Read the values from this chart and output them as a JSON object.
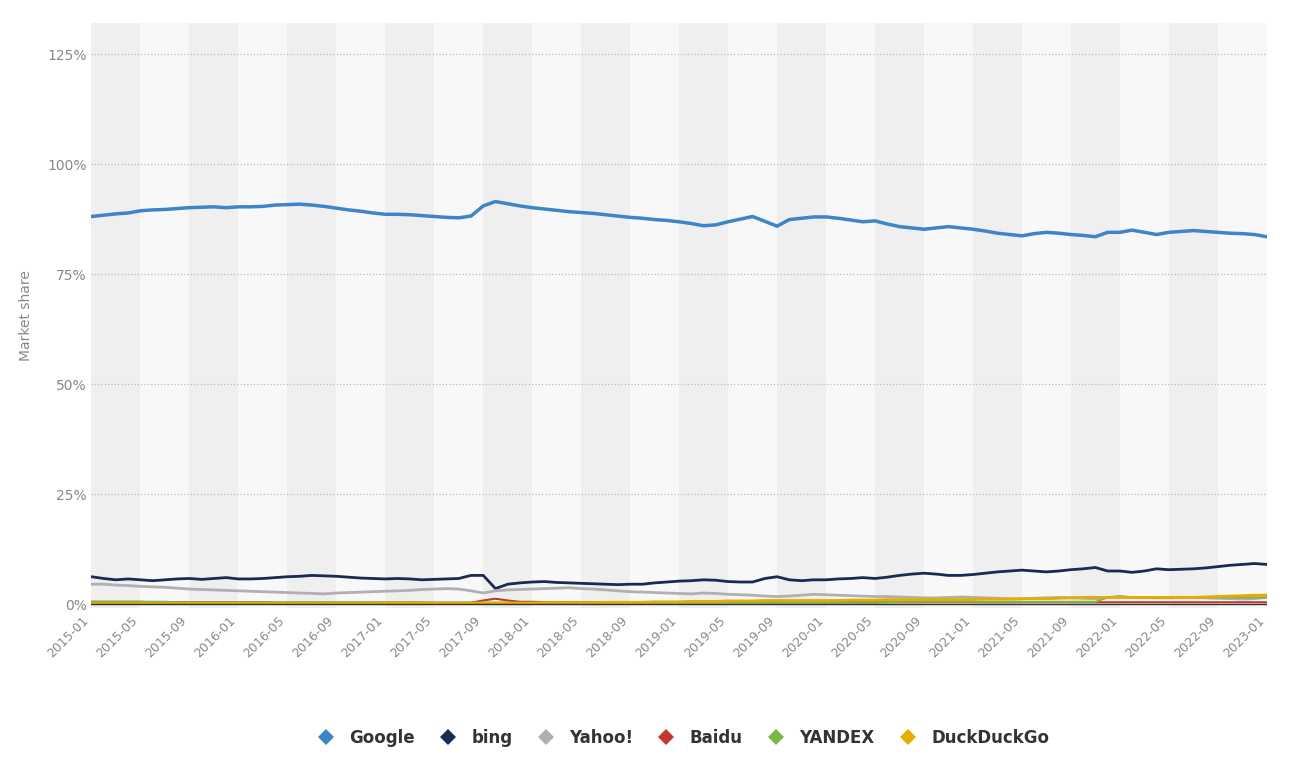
{
  "title": "",
  "ylabel": "Market share",
  "background_color": "#ffffff",
  "band_colors": [
    "#efefef",
    "#f8f8f8"
  ],
  "grid_color": "#cccccc",
  "series": {
    "Google": {
      "color": "#3d85c8",
      "linewidth": 2.5,
      "values": [
        88.1,
        88.4,
        88.7,
        88.9,
        89.4,
        89.6,
        89.7,
        89.9,
        90.1,
        90.2,
        90.3,
        90.1,
        90.3,
        90.3,
        90.4,
        90.7,
        90.8,
        90.9,
        90.7,
        90.4,
        90.0,
        89.6,
        89.3,
        88.9,
        88.6,
        88.6,
        88.5,
        88.3,
        88.1,
        87.9,
        87.8,
        88.2,
        90.5,
        91.5,
        91.0,
        90.5,
        90.1,
        89.8,
        89.5,
        89.2,
        89.0,
        88.8,
        88.5,
        88.2,
        87.9,
        87.7,
        87.4,
        87.2,
        86.9,
        86.5,
        86.0,
        86.2,
        86.9,
        87.5,
        88.1,
        87.0,
        85.9,
        87.4,
        87.7,
        88.0,
        88.0,
        87.7,
        87.3,
        86.9,
        87.1,
        86.4,
        85.8,
        85.5,
        85.2,
        85.5,
        85.8,
        85.5,
        85.2,
        84.8,
        84.3,
        84.0,
        83.7,
        84.2,
        84.5,
        84.3,
        84.0,
        83.8,
        83.5,
        84.5,
        84.5,
        85.0,
        84.5,
        84.0,
        84.5,
        84.7,
        84.9,
        84.7,
        84.5,
        84.3,
        84.2,
        84.0,
        83.5
      ]
    },
    "bing": {
      "color": "#1c2951",
      "linewidth": 2.0,
      "values": [
        6.2,
        5.8,
        5.5,
        5.7,
        5.5,
        5.3,
        5.5,
        5.7,
        5.8,
        5.6,
        5.8,
        6.0,
        5.7,
        5.7,
        5.8,
        6.0,
        6.2,
        6.3,
        6.5,
        6.4,
        6.3,
        6.1,
        5.9,
        5.8,
        5.7,
        5.8,
        5.7,
        5.5,
        5.6,
        5.7,
        5.8,
        6.5,
        6.5,
        3.5,
        4.5,
        4.8,
        5.0,
        5.1,
        4.9,
        4.8,
        4.7,
        4.6,
        4.5,
        4.4,
        4.5,
        4.5,
        4.8,
        5.0,
        5.2,
        5.3,
        5.5,
        5.4,
        5.1,
        5.0,
        5.0,
        5.8,
        6.2,
        5.5,
        5.3,
        5.5,
        5.5,
        5.7,
        5.8,
        6.0,
        5.8,
        6.1,
        6.5,
        6.8,
        7.0,
        6.8,
        6.5,
        6.5,
        6.7,
        7.0,
        7.3,
        7.5,
        7.7,
        7.5,
        7.3,
        7.5,
        7.8,
        8.0,
        8.3,
        7.5,
        7.5,
        7.2,
        7.5,
        8.0,
        7.8,
        7.9,
        8.0,
        8.2,
        8.5,
        8.8,
        9.0,
        9.2,
        9.0
      ]
    },
    "Yahoo!": {
      "color": "#b0b0b0",
      "linewidth": 2.0,
      "values": [
        4.5,
        4.5,
        4.3,
        4.2,
        4.0,
        3.9,
        3.8,
        3.6,
        3.4,
        3.3,
        3.2,
        3.1,
        3.0,
        2.9,
        2.8,
        2.7,
        2.6,
        2.5,
        2.4,
        2.3,
        2.5,
        2.6,
        2.7,
        2.8,
        2.9,
        3.0,
        3.1,
        3.3,
        3.4,
        3.5,
        3.4,
        3.0,
        2.5,
        3.0,
        3.2,
        3.3,
        3.4,
        3.5,
        3.6,
        3.7,
        3.5,
        3.4,
        3.2,
        3.0,
        2.8,
        2.7,
        2.6,
        2.5,
        2.4,
        2.3,
        2.5,
        2.4,
        2.2,
        2.1,
        2.0,
        1.8,
        1.7,
        1.8,
        2.0,
        2.2,
        2.1,
        2.0,
        1.9,
        1.8,
        1.7,
        1.7,
        1.6,
        1.5,
        1.4,
        1.4,
        1.5,
        1.6,
        1.5,
        1.4,
        1.3,
        1.2,
        1.2,
        1.3,
        1.4,
        1.5,
        1.4,
        1.3,
        1.2,
        1.5,
        1.5,
        1.5,
        1.5,
        1.4,
        1.4,
        1.5,
        1.5,
        1.4,
        1.3,
        1.2,
        1.1,
        1.2,
        1.5
      ]
    },
    "Baidu": {
      "color": "#c0392b",
      "linewidth": 1.5,
      "values": [
        0.5,
        0.5,
        0.5,
        0.5,
        0.5,
        0.4,
        0.4,
        0.4,
        0.4,
        0.4,
        0.4,
        0.4,
        0.4,
        0.4,
        0.4,
        0.3,
        0.3,
        0.3,
        0.3,
        0.3,
        0.3,
        0.3,
        0.3,
        0.3,
        0.3,
        0.3,
        0.3,
        0.3,
        0.3,
        0.3,
        0.3,
        0.3,
        0.8,
        1.2,
        0.8,
        0.5,
        0.5,
        0.4,
        0.4,
        0.4,
        0.4,
        0.4,
        0.4,
        0.4,
        0.4,
        0.4,
        0.4,
        0.4,
        0.4,
        0.4,
        0.4,
        0.4,
        0.4,
        0.4,
        0.4,
        0.4,
        0.4,
        0.4,
        0.4,
        0.4,
        0.4,
        0.4,
        0.4,
        0.4,
        0.4,
        0.4,
        0.4,
        0.4,
        0.4,
        0.4,
        0.4,
        0.4,
        0.4,
        0.4,
        0.4,
        0.4,
        0.4,
        0.4,
        0.4,
        0.4,
        0.4,
        0.4,
        0.4,
        0.4,
        0.4,
        0.4,
        0.4,
        0.4,
        0.4,
        0.4,
        0.4,
        0.4,
        0.4,
        0.4,
        0.4,
        0.4,
        0.4
      ]
    },
    "YANDEX": {
      "color": "#7ab648",
      "linewidth": 1.5,
      "values": [
        0.5,
        0.5,
        0.5,
        0.5,
        0.5,
        0.5,
        0.5,
        0.4,
        0.4,
        0.4,
        0.4,
        0.4,
        0.4,
        0.4,
        0.4,
        0.4,
        0.4,
        0.4,
        0.4,
        0.4,
        0.4,
        0.4,
        0.4,
        0.4,
        0.4,
        0.4,
        0.4,
        0.4,
        0.3,
        0.3,
        0.3,
        0.3,
        0.3,
        0.3,
        0.3,
        0.3,
        0.3,
        0.3,
        0.3,
        0.3,
        0.3,
        0.3,
        0.3,
        0.3,
        0.3,
        0.3,
        0.3,
        0.3,
        0.3,
        0.3,
        0.3,
        0.3,
        0.3,
        0.3,
        0.3,
        0.3,
        0.3,
        0.3,
        0.3,
        0.3,
        0.3,
        0.3,
        0.3,
        0.3,
        0.3,
        0.4,
        0.5,
        0.5,
        0.5,
        0.5,
        0.5,
        0.5,
        0.5,
        0.5,
        0.5,
        0.5,
        0.5,
        0.5,
        0.5,
        0.5,
        0.5,
        0.5,
        0.5,
        1.5,
        1.8,
        1.5,
        1.5,
        1.4,
        1.4,
        1.5,
        1.5,
        1.5,
        1.5,
        1.5,
        1.5,
        1.5,
        1.5
      ]
    },
    "DuckDuckGo": {
      "color": "#e6ac00",
      "linewidth": 2.0,
      "values": [
        0.1,
        0.1,
        0.1,
        0.1,
        0.1,
        0.1,
        0.1,
        0.1,
        0.1,
        0.1,
        0.1,
        0.1,
        0.1,
        0.1,
        0.1,
        0.1,
        0.1,
        0.1,
        0.1,
        0.1,
        0.1,
        0.1,
        0.1,
        0.1,
        0.2,
        0.2,
        0.2,
        0.2,
        0.2,
        0.2,
        0.2,
        0.2,
        0.2,
        0.2,
        0.2,
        0.2,
        0.2,
        0.3,
        0.3,
        0.3,
        0.3,
        0.3,
        0.4,
        0.4,
        0.4,
        0.4,
        0.5,
        0.5,
        0.5,
        0.6,
        0.6,
        0.6,
        0.7,
        0.7,
        0.7,
        0.8,
        0.8,
        0.8,
        0.8,
        0.8,
        0.8,
        0.8,
        0.9,
        0.9,
        0.9,
        1.0,
        1.0,
        1.0,
        1.0,
        1.0,
        1.0,
        1.0,
        1.0,
        1.1,
        1.1,
        1.1,
        1.2,
        1.2,
        1.2,
        1.3,
        1.4,
        1.5,
        1.5,
        1.5,
        1.5,
        1.5,
        1.5,
        1.5,
        1.5,
        1.5,
        1.5,
        1.6,
        1.7,
        1.8,
        1.9,
        2.0,
        2.0
      ]
    }
  },
  "x_labels": [
    "2015-01",
    "2015-05",
    "2015-09",
    "2016-01",
    "2016-05",
    "2016-09",
    "2017-01",
    "2017-05",
    "2017-09",
    "2018-01",
    "2018-05",
    "2018-09",
    "2019-01",
    "2019-05",
    "2019-09",
    "2020-01",
    "2020-05",
    "2020-09",
    "2021-01",
    "2021-05",
    "2021-09",
    "2022-01",
    "2022-05",
    "2022-09",
    "2023-01"
  ],
  "x_label_indices": [
    0,
    4,
    8,
    12,
    16,
    20,
    24,
    28,
    32,
    36,
    40,
    44,
    48,
    52,
    56,
    60,
    64,
    68,
    72,
    76,
    80,
    84,
    88,
    92,
    96
  ],
  "yticks": [
    0,
    25,
    50,
    75,
    100,
    125
  ],
  "ylim": [
    -1,
    132
  ],
  "n_points": 97
}
